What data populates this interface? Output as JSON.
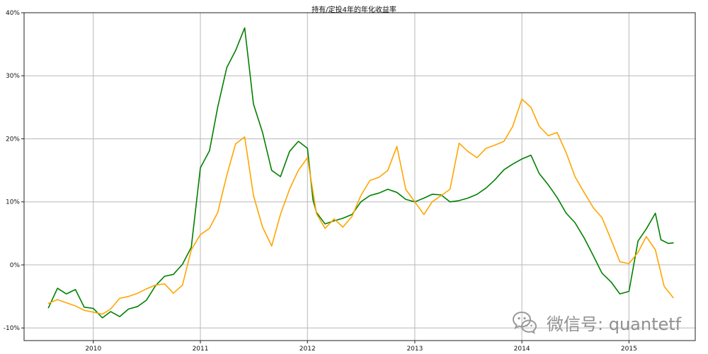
{
  "chart_data": {
    "type": "line",
    "title": "持有/定投4年的年化收益率",
    "xlabel": "",
    "ylabel": "",
    "x_ticks": [
      "2010",
      "2011",
      "2012",
      "2013",
      "2014",
      "2015"
    ],
    "y_ticks": [
      "-10%",
      "0%",
      "10%",
      "20%",
      "30%",
      "40%"
    ],
    "xlim": [
      "2009-05-10",
      "2015-08-15"
    ],
    "ylim": [
      -12,
      40
    ],
    "grid": true,
    "series": [
      {
        "color": "#008000",
        "points": [
          [
            "2009-08-01",
            -6.8
          ],
          [
            "2009-09-01",
            -3.7
          ],
          [
            "2009-10-01",
            -4.6
          ],
          [
            "2009-11-01",
            -3.9
          ],
          [
            "2009-12-01",
            -6.7
          ],
          [
            "2010-01-01",
            -6.9
          ],
          [
            "2010-02-01",
            -8.4
          ],
          [
            "2010-03-01",
            -7.4
          ],
          [
            "2010-04-01",
            -8.2
          ],
          [
            "2010-05-01",
            -7.0
          ],
          [
            "2010-06-01",
            -6.6
          ],
          [
            "2010-07-01",
            -5.6
          ],
          [
            "2010-08-01",
            -3.3
          ],
          [
            "2010-09-01",
            -1.8
          ],
          [
            "2010-10-01",
            -1.5
          ],
          [
            "2010-11-01",
            0.1
          ],
          [
            "2010-12-01",
            2.8
          ],
          [
            "2011-01-01",
            15.4
          ],
          [
            "2011-02-01",
            18.1
          ],
          [
            "2011-03-01",
            25.0
          ],
          [
            "2011-04-01",
            31.3
          ],
          [
            "2011-05-01",
            34.0
          ],
          [
            "2011-06-01",
            37.6
          ],
          [
            "2011-06-15",
            32.0
          ],
          [
            "2011-07-01",
            25.5
          ],
          [
            "2011-08-01",
            21.0
          ],
          [
            "2011-09-01",
            15.0
          ],
          [
            "2011-10-01",
            14.0
          ],
          [
            "2011-11-01",
            18.0
          ],
          [
            "2011-12-01",
            19.6
          ],
          [
            "2012-01-01",
            18.5
          ],
          [
            "2012-01-20",
            10.3
          ],
          [
            "2012-02-01",
            8.3
          ],
          [
            "2012-03-01",
            6.5
          ],
          [
            "2012-04-01",
            7.0
          ],
          [
            "2012-05-01",
            7.4
          ],
          [
            "2012-06-01",
            8.0
          ],
          [
            "2012-07-01",
            10.0
          ],
          [
            "2012-08-01",
            11.0
          ],
          [
            "2012-09-01",
            11.4
          ],
          [
            "2012-10-01",
            12.0
          ],
          [
            "2012-11-01",
            11.5
          ],
          [
            "2012-12-01",
            10.4
          ],
          [
            "2013-01-01",
            10.0
          ],
          [
            "2013-02-01",
            10.6
          ],
          [
            "2013-03-01",
            11.2
          ],
          [
            "2013-04-01",
            11.1
          ],
          [
            "2013-05-01",
            10.0
          ],
          [
            "2013-06-01",
            10.2
          ],
          [
            "2013-07-01",
            10.6
          ],
          [
            "2013-08-01",
            11.2
          ],
          [
            "2013-09-01",
            12.2
          ],
          [
            "2013-10-01",
            13.5
          ],
          [
            "2013-11-01",
            15.1
          ],
          [
            "2013-12-01",
            16.0
          ],
          [
            "2014-01-01",
            16.8
          ],
          [
            "2014-02-01",
            17.4
          ],
          [
            "2014-03-01",
            14.5
          ],
          [
            "2014-04-01",
            12.7
          ],
          [
            "2014-05-01",
            10.7
          ],
          [
            "2014-06-01",
            8.2
          ],
          [
            "2014-07-01",
            6.7
          ],
          [
            "2014-08-01",
            4.3
          ],
          [
            "2014-09-01",
            1.5
          ],
          [
            "2014-10-01",
            -1.3
          ],
          [
            "2014-11-01",
            -2.7
          ],
          [
            "2014-12-01",
            -4.6
          ],
          [
            "2015-01-01",
            -4.2
          ],
          [
            "2015-02-01",
            3.8
          ],
          [
            "2015-03-01",
            5.7
          ],
          [
            "2015-04-01",
            8.2
          ],
          [
            "2015-04-20",
            4.0
          ],
          [
            "2015-05-15",
            3.4
          ],
          [
            "2015-06-01",
            3.5
          ]
        ]
      },
      {
        "color": "#FFA500",
        "points": [
          [
            "2009-08-01",
            -6.1
          ],
          [
            "2009-09-01",
            -5.5
          ],
          [
            "2009-10-01",
            -6.0
          ],
          [
            "2009-11-01",
            -6.5
          ],
          [
            "2009-12-01",
            -7.2
          ],
          [
            "2010-01-01",
            -7.5
          ],
          [
            "2010-02-01",
            -7.8
          ],
          [
            "2010-03-01",
            -7.0
          ],
          [
            "2010-04-01",
            -5.3
          ],
          [
            "2010-05-01",
            -5.0
          ],
          [
            "2010-06-01",
            -4.5
          ],
          [
            "2010-07-01",
            -3.8
          ],
          [
            "2010-08-01",
            -3.2
          ],
          [
            "2010-09-01",
            -3.0
          ],
          [
            "2010-10-01",
            -4.5
          ],
          [
            "2010-11-01",
            -3.2
          ],
          [
            "2010-12-01",
            2.4
          ],
          [
            "2011-01-01",
            4.8
          ],
          [
            "2011-02-01",
            5.8
          ],
          [
            "2011-03-01",
            8.3
          ],
          [
            "2011-04-01",
            14.2
          ],
          [
            "2011-05-01",
            19.2
          ],
          [
            "2011-06-01",
            20.3
          ],
          [
            "2011-07-01",
            11.0
          ],
          [
            "2011-08-01",
            6.0
          ],
          [
            "2011-09-01",
            3.0
          ],
          [
            "2011-10-01",
            8.0
          ],
          [
            "2011-11-01",
            12.0
          ],
          [
            "2011-12-01",
            15.0
          ],
          [
            "2012-01-01",
            17.0
          ],
          [
            "2012-02-01",
            8.1
          ],
          [
            "2012-03-01",
            5.8
          ],
          [
            "2012-04-01",
            7.3
          ],
          [
            "2012-05-01",
            6.0
          ],
          [
            "2012-06-01",
            7.7
          ],
          [
            "2012-07-01",
            11.0
          ],
          [
            "2012-08-01",
            13.4
          ],
          [
            "2012-09-01",
            13.9
          ],
          [
            "2012-10-01",
            15.0
          ],
          [
            "2012-11-01",
            18.8
          ],
          [
            "2012-12-01",
            12.0
          ],
          [
            "2013-01-01",
            10.0
          ],
          [
            "2013-02-01",
            8.0
          ],
          [
            "2013-03-01",
            10.0
          ],
          [
            "2013-04-01",
            11.0
          ],
          [
            "2013-05-01",
            12.0
          ],
          [
            "2013-06-01",
            19.3
          ],
          [
            "2013-07-01",
            18.0
          ],
          [
            "2013-08-01",
            17.0
          ],
          [
            "2013-09-01",
            18.5
          ],
          [
            "2013-10-01",
            19.0
          ],
          [
            "2013-11-01",
            19.6
          ],
          [
            "2013-12-01",
            22.0
          ],
          [
            "2014-01-01",
            26.3
          ],
          [
            "2014-02-01",
            25.0
          ],
          [
            "2014-03-01",
            22.0
          ],
          [
            "2014-04-01",
            20.5
          ],
          [
            "2014-05-01",
            21.0
          ],
          [
            "2014-06-01",
            17.8
          ],
          [
            "2014-07-01",
            14.0
          ],
          [
            "2014-08-01",
            11.5
          ],
          [
            "2014-09-01",
            9.1
          ],
          [
            "2014-10-01",
            7.5
          ],
          [
            "2014-11-01",
            4.0
          ],
          [
            "2014-12-01",
            0.5
          ],
          [
            "2015-01-01",
            0.2
          ],
          [
            "2015-02-01",
            2.0
          ],
          [
            "2015-03-01",
            4.5
          ],
          [
            "2015-04-01",
            2.4
          ],
          [
            "2015-05-01",
            -3.4
          ],
          [
            "2015-06-01",
            -5.2
          ]
        ]
      }
    ]
  },
  "watermark": {
    "text": "微信号: quantetf",
    "icon": "wechat-icon",
    "color": "#909090"
  }
}
